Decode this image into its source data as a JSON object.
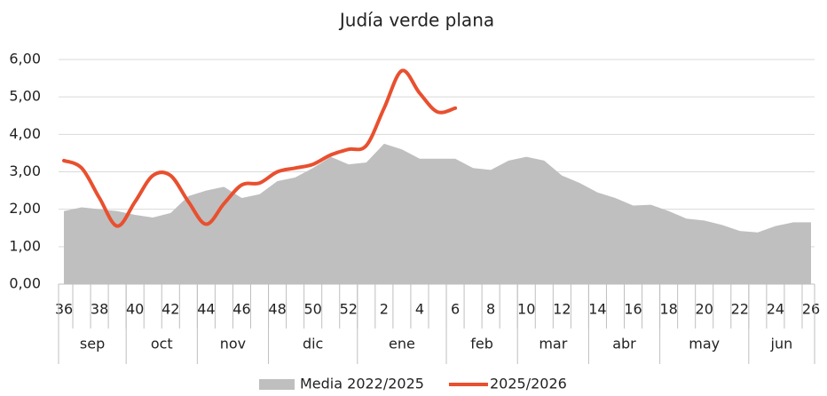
{
  "chart_data": {
    "type": "line",
    "title": "Judía verde plana",
    "categories": [
      "36",
      null,
      "38",
      null,
      "40",
      null,
      "42",
      null,
      "44",
      null,
      "46",
      null,
      "48",
      null,
      "50",
      null,
      "52",
      null,
      "2",
      null,
      "4",
      null,
      "6",
      null,
      "8",
      null,
      "10",
      null,
      "12",
      null,
      "14",
      null,
      "16",
      null,
      "18",
      null,
      "20",
      null,
      "22",
      null,
      "24",
      null,
      "26"
    ],
    "groups": [
      {
        "label": "sep",
        "span": 4
      },
      {
        "label": "oct",
        "span": 4
      },
      {
        "label": "nov",
        "span": 4
      },
      {
        "label": "dic",
        "span": 5
      },
      {
        "label": "ene",
        "span": 5
      },
      {
        "label": "feb",
        "span": 4
      },
      {
        "label": "mar",
        "span": 4
      },
      {
        "label": "abr",
        "span": 4
      },
      {
        "label": "may",
        "span": 5
      },
      {
        "label": "jun",
        "span": 4
      }
    ],
    "series": [
      {
        "name": "Media 2022/2025",
        "type": "area",
        "color": "#bfbfbf",
        "values": [
          1.95,
          2.05,
          2.0,
          1.95,
          1.85,
          1.78,
          1.9,
          2.35,
          2.5,
          2.6,
          2.3,
          2.4,
          2.75,
          2.85,
          3.1,
          3.4,
          3.2,
          3.25,
          3.75,
          3.6,
          3.35,
          3.35,
          3.35,
          3.1,
          3.05,
          3.3,
          3.4,
          3.3,
          2.9,
          2.7,
          2.45,
          2.3,
          2.1,
          2.12,
          1.95,
          1.75,
          1.7,
          1.58,
          1.42,
          1.38,
          1.55,
          1.65,
          1.65
        ]
      },
      {
        "name": "2025/2026",
        "type": "line",
        "color": "#e8502f",
        "values": [
          3.3,
          3.1,
          2.3,
          1.55,
          2.2,
          2.9,
          2.9,
          2.2,
          1.6,
          2.15,
          2.65,
          2.7,
          3.0,
          3.1,
          3.2,
          3.45,
          3.6,
          3.7,
          4.7,
          5.7,
          5.1,
          4.6,
          4.7,
          null,
          null,
          null,
          null,
          null,
          null,
          null,
          null,
          null,
          null,
          null,
          null,
          null,
          null,
          null,
          null,
          null,
          null,
          null,
          null
        ]
      }
    ],
    "ylim": [
      0,
      6
    ],
    "yticks": [
      {
        "value": 0,
        "label": "0,00"
      },
      {
        "value": 1,
        "label": "1,00"
      },
      {
        "value": 2,
        "label": "2,00"
      },
      {
        "value": 3,
        "label": "3,00"
      },
      {
        "value": 4,
        "label": "4,00"
      },
      {
        "value": 5,
        "label": "5,00"
      },
      {
        "value": 6,
        "label": "6,00"
      }
    ],
    "grid": true,
    "legend": "bottom"
  }
}
